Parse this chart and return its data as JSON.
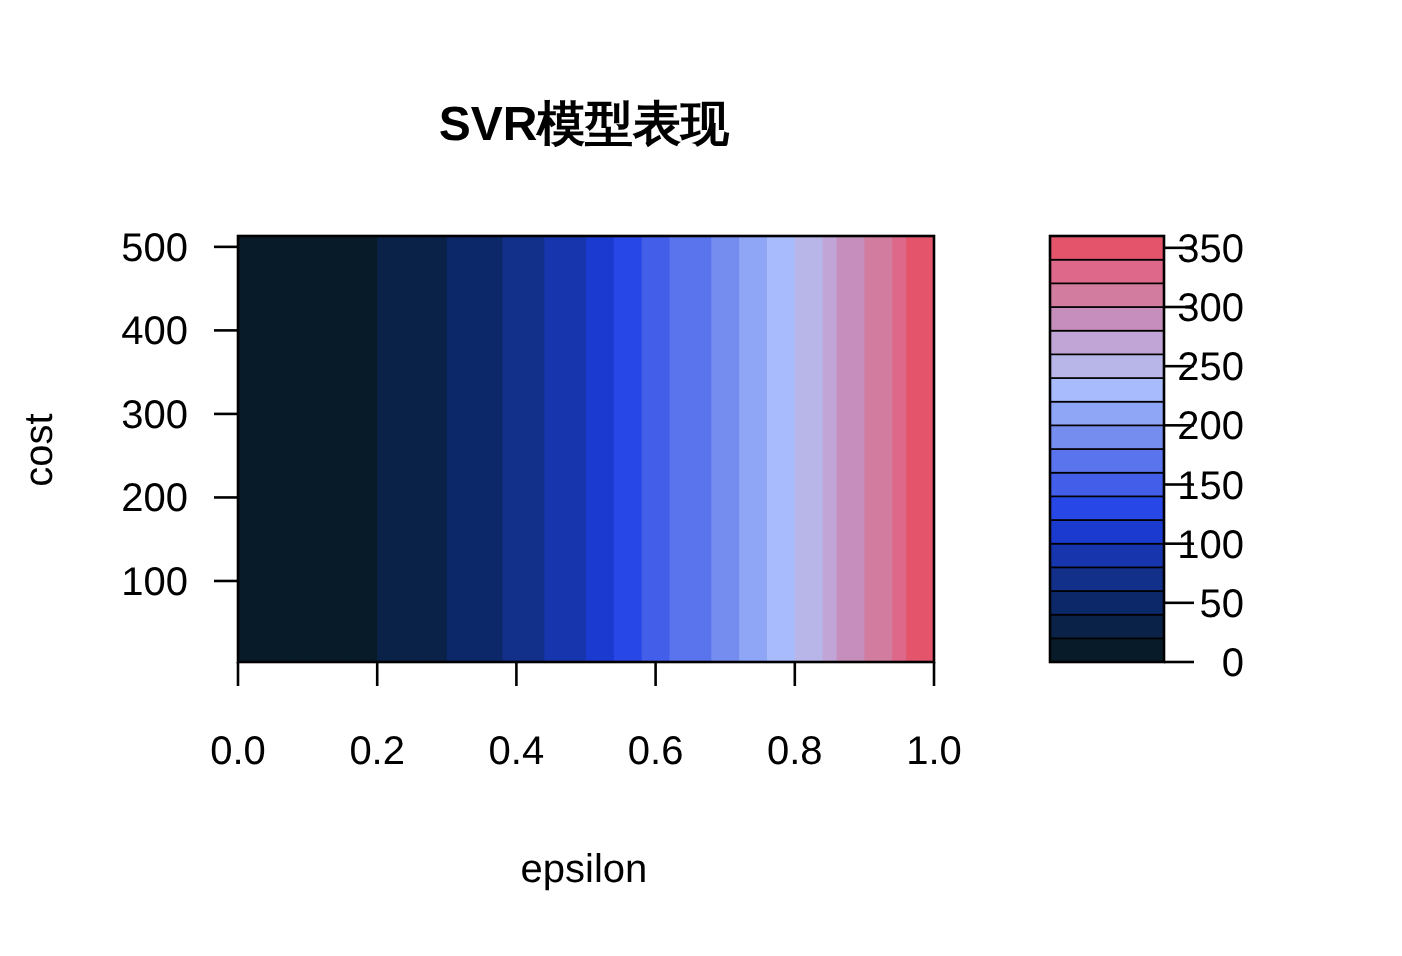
{
  "chart_data": {
    "type": "heatmap",
    "title": "SVR模型表现",
    "xlabel": "epsilon",
    "ylabel": "cost",
    "cells": [
      [
        10,
        10,
        10,
        10,
        10,
        10,
        10,
        10,
        10,
        10,
        30,
        30,
        30,
        30,
        30,
        50,
        50,
        50,
        50,
        70,
        70,
        70,
        90,
        90,
        90,
        110,
        110,
        130,
        130,
        150,
        150,
        170,
        170,
        170,
        190,
        190,
        210,
        210,
        230,
        230,
        250,
        250,
        270,
        290,
        290,
        310,
        310,
        330,
        350,
        350
      ]
    ],
    "colors": [
      "#071c28",
      "#0a2248",
      "#0c2869",
      "#12308a",
      "#1736ad",
      "#1b3bd0",
      "#2747e6",
      "#435fea",
      "#5a74ee",
      "#768df0",
      "#8fa5f5",
      "#a8bcfd",
      "#b8b6e8",
      "#c1a5d6",
      "#c68ebd",
      "#d27d9f",
      "#dd688a",
      "#e4546b"
    ],
    "xlim": [
      0,
      1
    ],
    "xticks": [
      {
        "value": 0,
        "label": "0.0"
      },
      {
        "value": 0.2,
        "label": "0.2"
      },
      {
        "value": 0.4,
        "label": "0.4"
      },
      {
        "value": 0.6,
        "label": "0.6"
      },
      {
        "value": 0.8,
        "label": "0.8"
      },
      {
        "value": 1,
        "label": "1.0"
      }
    ],
    "ylim": [
      3,
      513
    ],
    "yticks": [
      100,
      200,
      300,
      400,
      500
    ],
    "clim": [
      0,
      360
    ],
    "cticks": [
      0,
      50,
      100,
      150,
      200,
      250,
      300,
      350
    ]
  }
}
